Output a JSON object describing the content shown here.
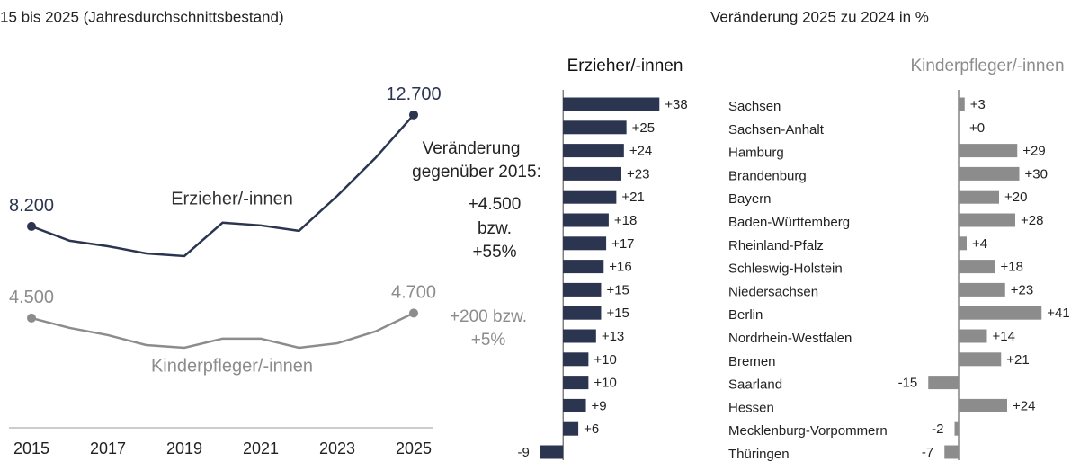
{
  "chart_data": [
    {
      "type": "line",
      "title": "15 bis 2025 (Jahresdurchschnittsbestand)",
      "x": [
        2015,
        2016,
        2017,
        2018,
        2019,
        2020,
        2021,
        2022,
        2023,
        2024,
        2025
      ],
      "xlim": [
        2015,
        2025
      ],
      "xticks": [
        2015,
        2017,
        2019,
        2021,
        2023,
        2025
      ],
      "ylim": [
        0,
        14000
      ],
      "series": [
        {
          "name": "Erzieher/-innen",
          "color": "#2b3550",
          "values": [
            8200,
            7620,
            7400,
            7110,
            7000,
            8350,
            8240,
            8020,
            9430,
            10960,
            12700
          ],
          "value_labels": [
            "8.200",
            null,
            null,
            null,
            null,
            null,
            null,
            null,
            null,
            null,
            "12.700"
          ]
        },
        {
          "name": "Kinderpfleger/-innen",
          "color": "#8c8c8c",
          "values": [
            4500,
            4100,
            3810,
            3410,
            3300,
            3670,
            3670,
            3300,
            3480,
            3960,
            4700
          ],
          "value_labels": [
            "4.500",
            null,
            null,
            null,
            null,
            null,
            null,
            null,
            null,
            null,
            "4.700"
          ]
        }
      ],
      "annotations": [
        "Veränderung",
        "gegenüber 2015:",
        "+4.500",
        "bzw.",
        "+55%",
        "+200 bzw.",
        "+5%"
      ]
    },
    {
      "type": "bar",
      "orientation": "horizontal",
      "title": "Erzieher/-innen",
      "color": "#2b3550",
      "categories": [
        null,
        null,
        null,
        null,
        null,
        null,
        null,
        null,
        null,
        null,
        null,
        null,
        null,
        null,
        null,
        null
      ],
      "values": [
        38,
        25,
        24,
        23,
        21,
        18,
        17,
        16,
        15,
        15,
        13,
        10,
        10,
        9,
        6,
        -9
      ],
      "value_labels": [
        "+38",
        "+25",
        "+24",
        "+23",
        "+21",
        "+18",
        "+17",
        "+16",
        "+15",
        "+15",
        "+13",
        "+10",
        "+10",
        "+9",
        "+6",
        "-9"
      ],
      "xlim": [
        -10,
        45
      ]
    },
    {
      "type": "bar",
      "orientation": "horizontal",
      "supertitle": "Veränderung 2025 zu 2024 in %",
      "title": "Kinderpfleger/-innen",
      "color": "#8c8c8c",
      "categories": [
        "Sachsen",
        "Sachsen-Anhalt",
        "Hamburg",
        "Brandenburg",
        "Bayern",
        "Baden-Württemberg",
        "Rheinland-Pfalz",
        "Schleswig-Holstein",
        "Niedersachsen",
        "Berlin",
        "Nordrhein-Westfalen",
        "Bremen",
        "Saarland",
        "Hessen",
        "Mecklenburg-Vorpommern",
        "Thüringen"
      ],
      "values": [
        3,
        0,
        29,
        30,
        20,
        28,
        4,
        18,
        23,
        41,
        14,
        21,
        -15,
        24,
        -2,
        -7
      ],
      "value_labels": [
        "+3",
        "+0",
        "+29",
        "+30",
        "+20",
        "+28",
        "+4",
        "+18",
        "+23",
        "+41",
        "+14",
        "+21",
        "-15",
        "+24",
        "-2",
        "-7"
      ],
      "xlim": [
        -20,
        50
      ]
    }
  ]
}
